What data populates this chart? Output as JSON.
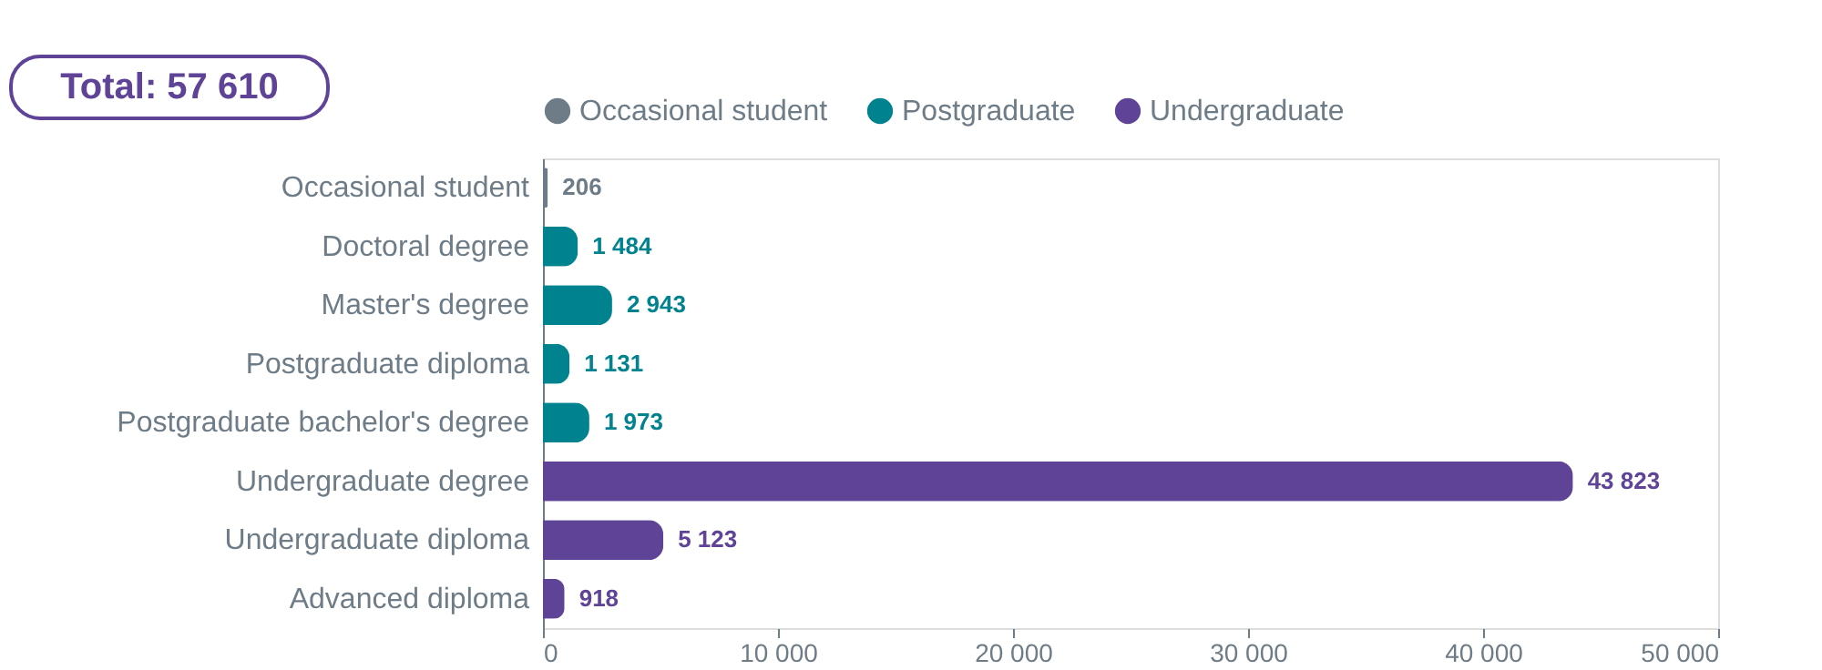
{
  "chart_data": {
    "type": "bar",
    "orientation": "horizontal",
    "stacked": true,
    "categories": [
      "Occasional student",
      "Doctoral degree",
      "Master's degree",
      "Postgraduate diploma",
      "Postgraduate bachelor's degree",
      "Undergraduate degree",
      "Undergraduate diploma",
      "Advanced diploma"
    ],
    "series": [
      {
        "name": "Occasional student",
        "color": "#6e7c87",
        "values": [
          206,
          null,
          null,
          null,
          null,
          null,
          null,
          null
        ],
        "value_labels": [
          "206",
          null,
          null,
          null,
          null,
          null,
          null,
          null
        ]
      },
      {
        "name": "Postgraduate",
        "color": "#00838f",
        "values": [
          null,
          1484,
          2943,
          1131,
          1973,
          null,
          null,
          null
        ],
        "value_labels": [
          null,
          "1 484",
          "2 943",
          "1 131",
          "1 973",
          null,
          null,
          null
        ]
      },
      {
        "name": "Undergraduate",
        "color": "#5e4397",
        "values": [
          null,
          null,
          null,
          null,
          null,
          43823,
          5123,
          918
        ],
        "value_labels": [
          null,
          null,
          null,
          null,
          null,
          "43 823",
          "5 123",
          "918"
        ]
      }
    ],
    "xlim": [
      0,
      50000
    ],
    "xticks": [
      0,
      {
        "value": 10000,
        "label": "10 000"
      },
      {
        "value": 20000,
        "label": "20 000"
      },
      {
        "value": 30000,
        "label": "30 000"
      },
      {
        "value": 40000,
        "label": "40 000"
      },
      {
        "value": 50000,
        "label": "50 000"
      }
    ],
    "grid": false,
    "legend": "top",
    "annotations": [
      "Total: 57 610"
    ]
  }
}
